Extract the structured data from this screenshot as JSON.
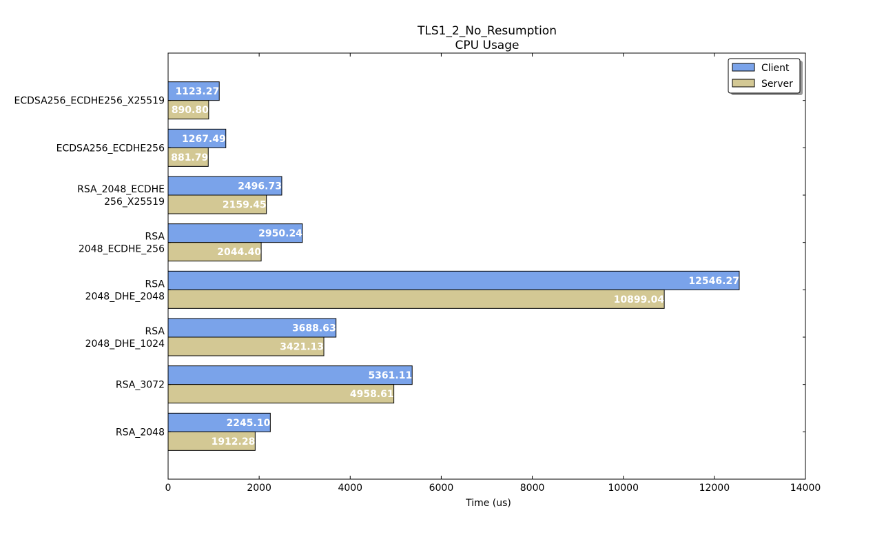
{
  "chart_data": {
    "type": "bar",
    "orientation": "horizontal",
    "title": "TLS1_2_No_Resumption",
    "subtitle": "CPU Usage",
    "xlabel": "Time (us)",
    "ylabel": "",
    "xlim": [
      0,
      14000
    ],
    "xticks": [
      "0",
      "2000",
      "4000",
      "6000",
      "8000",
      "10000",
      "12000",
      "14000"
    ],
    "grid": false,
    "legend_position": "top-right",
    "categories": [
      [
        "ECDSA256_ECDHE256_X25519"
      ],
      [
        "ECDSA256_ECDHE256"
      ],
      [
        "RSA_2048_ECDHE",
        "256_X25519"
      ],
      [
        "RSA",
        "2048_ECDHE_256"
      ],
      [
        "RSA",
        "2048_DHE_2048"
      ],
      [
        "RSA",
        "2048_DHE_1024"
      ],
      [
        "RSA_3072"
      ],
      [
        "RSA_2048"
      ]
    ],
    "series": [
      {
        "name": "Client",
        "color": "#7aa3ea",
        "values": [
          1123.27,
          1267.49,
          2496.73,
          2950.24,
          12546.27,
          3688.63,
          5361.11,
          2245.1
        ],
        "labels": [
          "1123.27",
          "1267.49",
          "2496.73",
          "2950.24",
          "12546.27",
          "3688.63",
          "5361.11",
          "2245.10"
        ]
      },
      {
        "name": "Server",
        "color": "#d3c894",
        "values": [
          890.8,
          881.79,
          2159.45,
          2044.4,
          10899.04,
          3421.13,
          4958.61,
          1912.28
        ],
        "labels": [
          "890.80",
          "881.79",
          "2159.45",
          "2044.40",
          "10899.04",
          "3421.13",
          "4958.61",
          "1912.28"
        ]
      }
    ]
  }
}
